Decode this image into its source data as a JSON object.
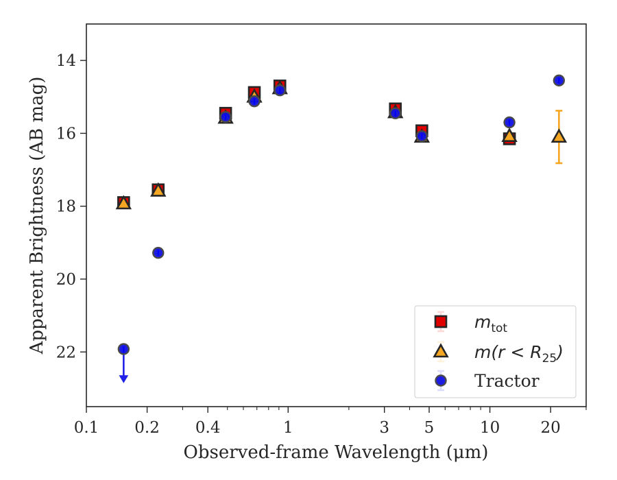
{
  "chart_data": {
    "type": "scatter",
    "title": "",
    "xlabel": "Observed-frame Wavelength (μm)",
    "ylabel": "Apparent Brightness (AB mag)",
    "xscale": "log",
    "xlim": [
      0.1,
      30
    ],
    "ylim": [
      23.5,
      13
    ],
    "y_inverted": true,
    "x_ticks": [
      0.1,
      0.2,
      0.4,
      1,
      3,
      5,
      10,
      20
    ],
    "x_tick_labels": [
      "0.1",
      "0.2",
      "0.4",
      "1",
      "3",
      "5",
      "10",
      "20"
    ],
    "y_ticks": [
      14,
      16,
      18,
      20,
      22
    ],
    "y_tick_labels": [
      "14",
      "16",
      "18",
      "20",
      "22"
    ],
    "grid": false,
    "legend_position": "lower-right",
    "series": [
      {
        "name": "m_tot",
        "legend": {
          "main": "m",
          "sub": "tot",
          "suffix": ""
        },
        "marker": "square",
        "color": "#e00000",
        "points": [
          {
            "x": 0.153,
            "y": 17.9,
            "yerr": 0.05
          },
          {
            "x": 0.227,
            "y": 17.55,
            "yerr": 0.05
          },
          {
            "x": 0.49,
            "y": 15.45,
            "yerr": 0.05
          },
          {
            "x": 0.68,
            "y": 14.88,
            "yerr": 0.05
          },
          {
            "x": 0.91,
            "y": 14.7,
            "yerr": 0.05
          },
          {
            "x": 3.4,
            "y": 15.33,
            "yerr": 0.05
          },
          {
            "x": 4.6,
            "y": 15.93,
            "yerr": 0.05
          },
          {
            "x": 12.5,
            "y": 16.15,
            "yerr": 0.05
          }
        ]
      },
      {
        "name": "m(r < R_25)",
        "legend": {
          "main": "m(r < R",
          "sub": "25",
          "suffix": ")"
        },
        "marker": "triangle",
        "color": "#f5a623",
        "points": [
          {
            "x": 0.153,
            "y": 17.93,
            "yerr": 0.05
          },
          {
            "x": 0.227,
            "y": 17.58,
            "yerr": 0.05
          },
          {
            "x": 0.49,
            "y": 15.58,
            "yerr": 0.05
          },
          {
            "x": 0.68,
            "y": 15.0,
            "yerr": 0.05
          },
          {
            "x": 0.91,
            "y": 14.77,
            "yerr": 0.05
          },
          {
            "x": 3.4,
            "y": 15.43,
            "yerr": 0.05
          },
          {
            "x": 4.6,
            "y": 16.1,
            "yerr": 0.05
          },
          {
            "x": 12.5,
            "y": 16.08,
            "yerr": 0.05
          },
          {
            "x": 22.0,
            "y": 16.1,
            "yerr": 0.72
          }
        ]
      },
      {
        "name": "Tractor",
        "legend": {
          "main": "Tractor",
          "sub": "",
          "suffix": ""
        },
        "marker": "circle",
        "color": "#1010e0",
        "points": [
          {
            "x": 0.153,
            "y": 21.92,
            "upper_limit": true,
            "limit_to": 22.8
          },
          {
            "x": 0.227,
            "y": 19.28
          },
          {
            "x": 0.49,
            "y": 15.55
          },
          {
            "x": 0.68,
            "y": 15.12
          },
          {
            "x": 0.91,
            "y": 14.82
          },
          {
            "x": 3.4,
            "y": 15.45
          },
          {
            "x": 4.6,
            "y": 16.08
          },
          {
            "x": 12.5,
            "y": 15.7
          },
          {
            "x": 22.0,
            "y": 14.55
          }
        ]
      }
    ]
  }
}
